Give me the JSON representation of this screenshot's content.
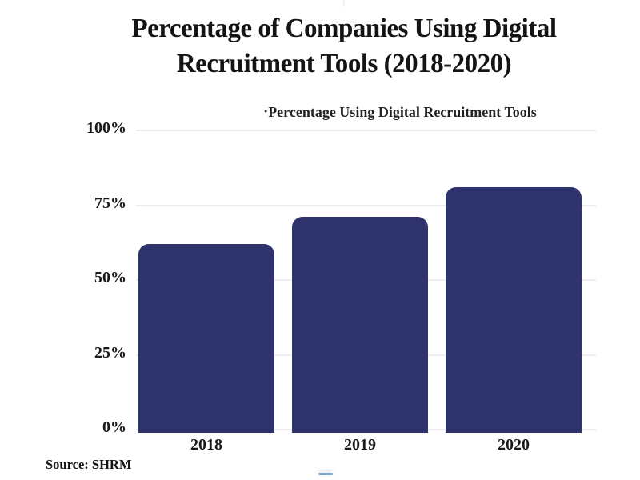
{
  "header": {
    "title_lines": [
      "Percentage of Companies Using Digital",
      "Recruitment Tools (2018-2020)"
    ]
  },
  "legend": {
    "marker": "·",
    "label": "Percentage Using Digital Recruitment Tools"
  },
  "footer": {
    "source": "Source: SHRM"
  },
  "colors": {
    "bar": "#2e336e",
    "text": "#141414",
    "gridline": "#f0edee",
    "gridline_top": "#ebebeb",
    "bottom_dash": "#7ea7cd",
    "top_tick": "#e2e7e6",
    "background": "#ffffff"
  },
  "chart_data": {
    "type": "bar",
    "title": "Percentage of Companies Using Digital Recruitment Tools (2018-2020)",
    "series_name": "Percentage Using Digital Recruitment Tools",
    "categories": [
      "2018",
      "2019",
      "2020"
    ],
    "values": [
      62,
      71,
      81
    ],
    "unit": "%",
    "xlabel": "",
    "ylabel": "",
    "ylim": [
      0,
      100
    ],
    "y_ticks": [
      {
        "value": 0,
        "label": "0%"
      },
      {
        "value": 25,
        "label": "25%"
      },
      {
        "value": 50,
        "label": "50%"
      },
      {
        "value": 75,
        "label": "75%"
      },
      {
        "value": 100,
        "label": "100%"
      }
    ],
    "grid": true,
    "legend_position": "top-center",
    "source": "Source: SHRM"
  }
}
